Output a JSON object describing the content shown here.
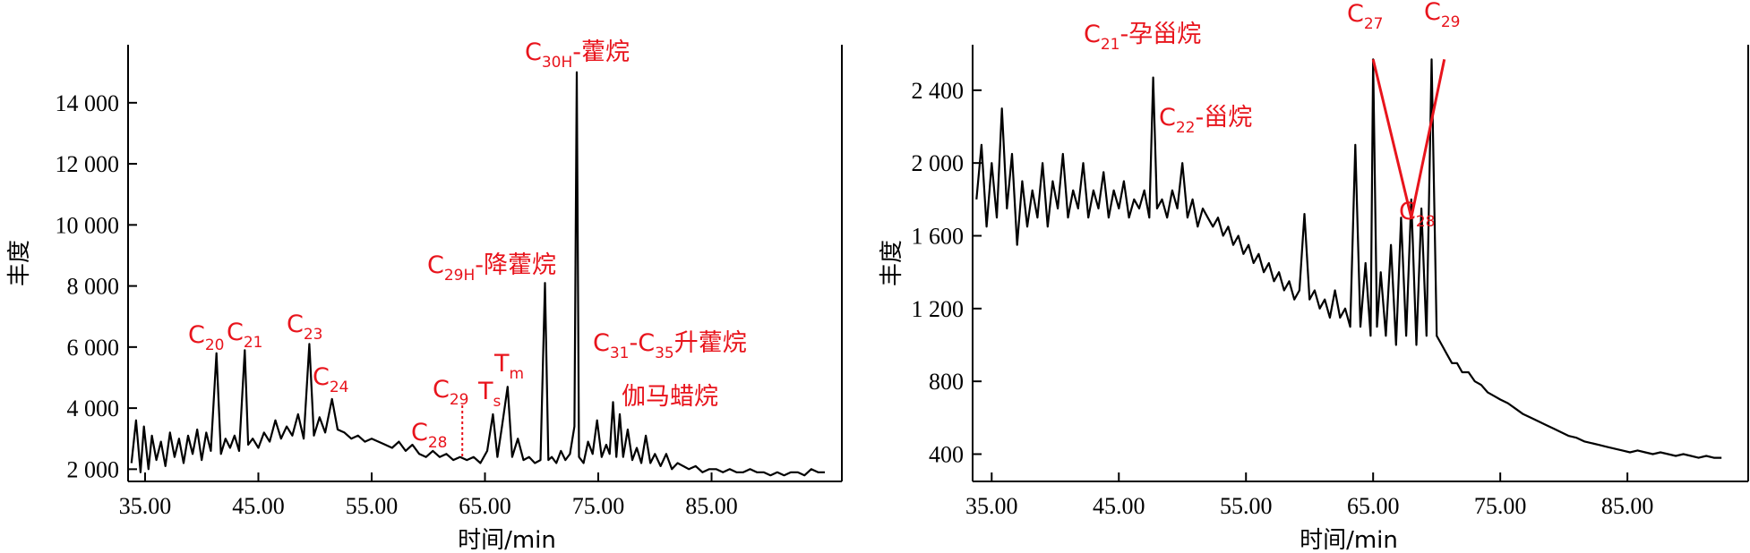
{
  "chart_data": [
    {
      "type": "line",
      "xlabel": "时间/min",
      "ylabel": "丰度",
      "xlim": [
        33.5,
        96.5
      ],
      "ylim": [
        1600,
        15900
      ],
      "x_ticks": [
        35,
        45,
        55,
        65,
        75,
        85
      ],
      "x_tick_labels": [
        "35.00",
        "45.00",
        "55.00",
        "65.00",
        "75.00",
        "85.00"
      ],
      "y_ticks": [
        2000,
        4000,
        6000,
        8000,
        10000,
        12000,
        14000
      ],
      "y_tick_labels": [
        "2 000",
        "4 000",
        "6 000",
        "8 000",
        "10 000",
        "12 000",
        "14 000"
      ],
      "colors": {
        "line": "#000000",
        "annotation": "#e8141c"
      },
      "series": [
        {
          "x": [
            33.8,
            34.2,
            34.6,
            34.9,
            35.3,
            35.6,
            36.0,
            36.4,
            36.8,
            37.2,
            37.6,
            38.0,
            38.4,
            38.8,
            39.2,
            39.6,
            40.0,
            40.4,
            40.8,
            41.3,
            41.7,
            42.1,
            42.5,
            42.9,
            43.3,
            43.8,
            44.1,
            44.5,
            45.0,
            45.5,
            46.0,
            46.5,
            47.0,
            47.5,
            48.0,
            48.5,
            49.0,
            49.5,
            49.9,
            50.4,
            50.9,
            51.5,
            52.0,
            52.6,
            53.2,
            53.8,
            54.4,
            55.0,
            55.6,
            56.2,
            56.8,
            57.4,
            58.0,
            58.6,
            59.2,
            59.8,
            60.4,
            61.0,
            61.6,
            62.2,
            62.8,
            63.4,
            64.0,
            64.6,
            65.2,
            65.7,
            66.1,
            66.5,
            67.0,
            67.4,
            67.9,
            68.4,
            68.9,
            69.4,
            69.9,
            70.3,
            70.6,
            70.9,
            71.3,
            71.7,
            72.1,
            72.5,
            72.9,
            73.1,
            73.3,
            73.7,
            74.1,
            74.5,
            74.9,
            75.3,
            75.7,
            76.0,
            76.3,
            76.6,
            76.9,
            77.2,
            77.6,
            78.0,
            78.4,
            78.8,
            79.2,
            79.6,
            80.0,
            80.5,
            81.0,
            81.5,
            82.0,
            82.5,
            83.0,
            83.6,
            84.2,
            84.8,
            85.4,
            86.0,
            86.6,
            87.2,
            87.8,
            88.4,
            89.0,
            89.6,
            90.2,
            90.8,
            91.4,
            92.0,
            92.6,
            93.2,
            93.8,
            94.4,
            95.0
          ],
          "y": [
            2200,
            3600,
            1900,
            3400,
            2000,
            3100,
            2300,
            2900,
            2100,
            3200,
            2400,
            3000,
            2200,
            3100,
            2500,
            3300,
            2300,
            3200,
            2600,
            5800,
            2500,
            3000,
            2700,
            3100,
            2600,
            5900,
            2800,
            3000,
            2700,
            3200,
            2900,
            3600,
            3000,
            3400,
            3100,
            3800,
            3000,
            6100,
            3100,
            3700,
            3200,
            4300,
            3300,
            3200,
            3000,
            3100,
            2900,
            3000,
            2900,
            2800,
            2700,
            2900,
            2600,
            2800,
            2500,
            2400,
            2600,
            2400,
            2500,
            2300,
            2400,
            2300,
            2400,
            2200,
            2600,
            3800,
            2400,
            3400,
            4700,
            2400,
            3000,
            2300,
            2400,
            2200,
            2300,
            8100,
            2300,
            2400,
            2200,
            2600,
            2300,
            2500,
            3400,
            15000,
            2400,
            2200,
            2900,
            2500,
            3600,
            2400,
            2800,
            2500,
            4200,
            2400,
            3800,
            2400,
            3300,
            2300,
            2700,
            2200,
            3100,
            2200,
            2500,
            2100,
            2500,
            2000,
            2200,
            2100,
            2000,
            2100,
            1900,
            2000,
            2000,
            1900,
            2000,
            1900,
            1900,
            2000,
            1900,
            1900,
            1800,
            1900,
            1800,
            1900,
            1900,
            1800,
            2000,
            1900,
            1900
          ]
        }
      ],
      "annotations": [
        {
          "base": "C",
          "sub": "20",
          "suffix": "",
          "x": 41.3,
          "y": 5800
        },
        {
          "base": "C",
          "sub": "21",
          "suffix": "",
          "x": 43.8,
          "y": 5900
        },
        {
          "base": "C",
          "sub": "23",
          "suffix": "",
          "x": 49.5,
          "y": 6100
        },
        {
          "base": "C",
          "sub": "24",
          "suffix": "",
          "x": 51.5,
          "y": 4300
        },
        {
          "base": "C",
          "sub": "28",
          "suffix": "",
          "x": 60.4,
          "y": 2600
        },
        {
          "base": "C",
          "sub": "29",
          "suffix": "",
          "x": 63.0,
          "y": 2400
        },
        {
          "base": "T",
          "sub": "s",
          "suffix": "",
          "x": 65.7,
          "y": 3800
        },
        {
          "base": "T",
          "sub": "m",
          "suffix": "",
          "x": 67.0,
          "y": 4700
        },
        {
          "base": "C",
          "sub": "29H",
          "suffix": "-降藿烷",
          "x": 70.3,
          "y": 8100
        },
        {
          "base": "C",
          "sub": "30H",
          "suffix": "-藿烷",
          "x": 73.1,
          "y": 15000
        },
        {
          "base": "C",
          "sub": "31",
          "suffix": "-C",
          "sub2": "35",
          "suffix2": "升藿烷",
          "x": 76.3,
          "y": 4200
        },
        {
          "base": "",
          "sub": "",
          "suffix": "伽马蜡烷",
          "x": 76.6,
          "y": 3800
        }
      ]
    },
    {
      "type": "line",
      "xlabel": "时间/min",
      "ylabel": "丰度",
      "xlim": [
        33.5,
        94.5
      ],
      "ylim": [
        250,
        2650
      ],
      "x_ticks": [
        35,
        45,
        55,
        65,
        75,
        85
      ],
      "x_tick_labels": [
        "35.00",
        "45.00",
        "55.00",
        "65.00",
        "75.00",
        "85.00"
      ],
      "y_ticks": [
        400,
        800,
        1200,
        1600,
        2000,
        2400
      ],
      "y_tick_labels": [
        "400",
        "800",
        "1 200",
        "1 600",
        "2 000",
        "2 400"
      ],
      "colors": {
        "line": "#000000",
        "annotation": "#e8141c"
      },
      "series": [
        {
          "x": [
            33.8,
            34.2,
            34.6,
            35.0,
            35.4,
            35.8,
            36.2,
            36.6,
            37.0,
            37.4,
            37.8,
            38.2,
            38.6,
            39.0,
            39.4,
            39.8,
            40.2,
            40.6,
            41.0,
            41.4,
            41.8,
            42.2,
            42.6,
            43.0,
            43.4,
            43.8,
            44.2,
            44.6,
            45.0,
            45.4,
            45.8,
            46.2,
            46.6,
            47.0,
            47.4,
            47.7,
            48.0,
            48.4,
            48.8,
            49.2,
            49.6,
            50.0,
            50.4,
            50.8,
            51.2,
            51.6,
            52.0,
            52.4,
            52.8,
            53.2,
            53.6,
            54.0,
            54.4,
            54.8,
            55.2,
            55.6,
            56.0,
            56.4,
            56.8,
            57.2,
            57.6,
            58.0,
            58.4,
            58.8,
            59.2,
            59.6,
            60.0,
            60.4,
            60.8,
            61.2,
            61.6,
            62.0,
            62.4,
            62.8,
            63.2,
            63.6,
            64.0,
            64.4,
            64.8,
            65.0,
            65.3,
            65.6,
            66.0,
            66.4,
            66.8,
            67.2,
            67.6,
            68.0,
            68.4,
            68.8,
            69.2,
            69.6,
            70.0,
            70.4,
            70.8,
            71.2,
            71.6,
            72.0,
            72.5,
            73.0,
            73.5,
            74.0,
            74.5,
            75.0,
            75.6,
            76.2,
            76.8,
            77.4,
            78.0,
            78.6,
            79.2,
            79.8,
            80.4,
            81.0,
            81.6,
            82.2,
            82.8,
            83.4,
            84.0,
            84.6,
            85.2,
            85.8,
            86.4,
            87.0,
            87.6,
            88.2,
            88.8,
            89.4,
            90.0,
            90.6,
            91.2,
            91.8,
            92.4
          ],
          "y": [
            1800,
            2100,
            1650,
            2000,
            1700,
            2300,
            1750,
            2050,
            1550,
            1900,
            1650,
            1850,
            1700,
            2000,
            1650,
            1900,
            1750,
            2050,
            1700,
            1850,
            1750,
            2000,
            1700,
            1850,
            1750,
            1950,
            1700,
            1850,
            1750,
            1900,
            1700,
            1800,
            1750,
            1850,
            1700,
            2470,
            1750,
            1800,
            1700,
            1850,
            1750,
            2000,
            1700,
            1800,
            1650,
            1750,
            1700,
            1650,
            1700,
            1600,
            1650,
            1550,
            1600,
            1500,
            1550,
            1450,
            1500,
            1400,
            1450,
            1350,
            1400,
            1300,
            1350,
            1250,
            1300,
            1720,
            1250,
            1300,
            1200,
            1250,
            1150,
            1300,
            1150,
            1200,
            1100,
            2100,
            1100,
            1450,
            1050,
            2570,
            1100,
            1400,
            1050,
            1550,
            1000,
            1700,
            1050,
            1800,
            1000,
            1750,
            1050,
            2570,
            1050,
            1000,
            950,
            900,
            900,
            850,
            850,
            800,
            780,
            740,
            720,
            700,
            680,
            650,
            620,
            600,
            580,
            560,
            540,
            520,
            500,
            490,
            470,
            460,
            450,
            440,
            430,
            420,
            410,
            420,
            410,
            400,
            410,
            400,
            390,
            400,
            390,
            380,
            390,
            380,
            380
          ]
        }
      ],
      "highlight_polyline": {
        "x": [
          65.0,
          68.0,
          70.6
        ],
        "y": [
          2570,
          1700,
          2570
        ]
      },
      "annotations": [
        {
          "base": "C",
          "sub": "21",
          "suffix": "-孕甾烷",
          "x": 47.7,
          "y": 2470
        },
        {
          "base": "C",
          "sub": "22",
          "suffix": "-甾烷",
          "x": 50.0,
          "y": 2000
        },
        {
          "base": "C",
          "sub": "27",
          "suffix": "",
          "x": 65.0,
          "y": 2570
        },
        {
          "base": "C",
          "sub": "28",
          "suffix": "",
          "x": 68.0,
          "y": 1700
        },
        {
          "base": "C",
          "sub": "29",
          "suffix": "",
          "x": 70.6,
          "y": 2570
        }
      ]
    }
  ]
}
